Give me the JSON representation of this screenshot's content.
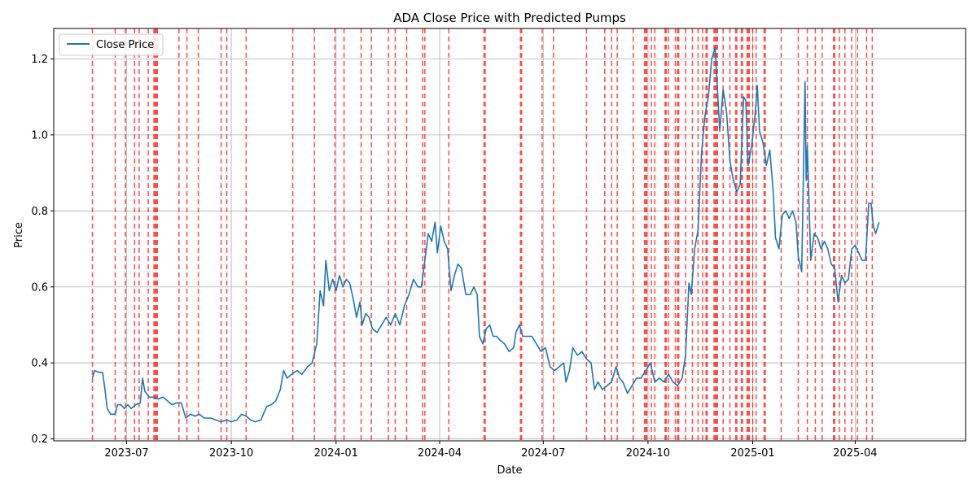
{
  "chart_data": {
    "type": "line",
    "title": "ADA Close Price with Predicted Pumps",
    "xlabel": "Date",
    "ylabel": "Price",
    "grid": true,
    "legend": {
      "position": "top-left",
      "entries": [
        "Close Price"
      ]
    },
    "ylim": [
      0.195,
      1.28
    ],
    "yticks": [
      0.2,
      0.4,
      0.6,
      0.8,
      1.0,
      1.2
    ],
    "ytick_labels": [
      "0.2",
      "0.4",
      "0.6",
      "0.8",
      "1.0",
      "1.2"
    ],
    "xlim_days": [
      0,
      500
    ],
    "xticks": [
      {
        "label": "2023-07",
        "day": 30
      },
      {
        "label": "2023-10",
        "day": 122
      },
      {
        "label": "2024-01",
        "day": 214
      },
      {
        "label": "2024-04",
        "day": 305
      },
      {
        "label": "2024-07",
        "day": 396
      },
      {
        "label": "2024-10",
        "day": 488
      },
      {
        "label": "2025-01",
        "day": 580
      },
      {
        "label": "2025-04",
        "day": 670
      }
    ],
    "x_start_day": -34,
    "x_end_day": 767,
    "series": [
      {
        "name": "Close Price",
        "color": "#1f77b4",
        "points": [
          [
            0,
            0.36
          ],
          [
            2,
            0.38
          ],
          [
            6,
            0.375
          ],
          [
            9,
            0.375
          ],
          [
            11,
            0.33
          ],
          [
            13,
            0.28
          ],
          [
            16,
            0.265
          ],
          [
            20,
            0.265
          ],
          [
            22,
            0.29
          ],
          [
            25,
            0.29
          ],
          [
            28,
            0.28
          ],
          [
            31,
            0.29
          ],
          [
            34,
            0.28
          ],
          [
            38,
            0.29
          ],
          [
            42,
            0.295
          ],
          [
            44,
            0.36
          ],
          [
            46,
            0.325
          ],
          [
            50,
            0.31
          ],
          [
            54,
            0.31
          ],
          [
            58,
            0.305
          ],
          [
            62,
            0.31
          ],
          [
            66,
            0.3
          ],
          [
            70,
            0.29
          ],
          [
            74,
            0.295
          ],
          [
            78,
            0.295
          ],
          [
            82,
            0.255
          ],
          [
            86,
            0.265
          ],
          [
            90,
            0.26
          ],
          [
            94,
            0.265
          ],
          [
            98,
            0.255
          ],
          [
            104,
            0.255
          ],
          [
            108,
            0.25
          ],
          [
            113,
            0.245
          ],
          [
            118,
            0.25
          ],
          [
            122,
            0.245
          ],
          [
            127,
            0.25
          ],
          [
            131,
            0.265
          ],
          [
            135,
            0.26
          ],
          [
            139,
            0.25
          ],
          [
            143,
            0.245
          ],
          [
            148,
            0.25
          ],
          [
            153,
            0.285
          ],
          [
            157,
            0.29
          ],
          [
            161,
            0.3
          ],
          [
            165,
            0.33
          ],
          [
            168,
            0.38
          ],
          [
            171,
            0.36
          ],
          [
            175,
            0.37
          ],
          [
            180,
            0.38
          ],
          [
            184,
            0.37
          ],
          [
            189,
            0.39
          ],
          [
            193,
            0.4
          ],
          [
            197,
            0.45
          ],
          [
            200,
            0.59
          ],
          [
            203,
            0.55
          ],
          [
            205,
            0.67
          ],
          [
            208,
            0.59
          ],
          [
            211,
            0.62
          ],
          [
            214,
            0.59
          ],
          [
            217,
            0.63
          ],
          [
            220,
            0.6
          ],
          [
            223,
            0.62
          ],
          [
            226,
            0.61
          ],
          [
            229,
            0.57
          ],
          [
            232,
            0.52
          ],
          [
            235,
            0.56
          ],
          [
            237,
            0.5
          ],
          [
            240,
            0.53
          ],
          [
            243,
            0.52
          ],
          [
            246,
            0.49
          ],
          [
            250,
            0.48
          ],
          [
            254,
            0.5
          ],
          [
            258,
            0.52
          ],
          [
            262,
            0.5
          ],
          [
            266,
            0.53
          ],
          [
            270,
            0.5
          ],
          [
            274,
            0.55
          ],
          [
            278,
            0.58
          ],
          [
            282,
            0.62
          ],
          [
            286,
            0.6
          ],
          [
            289,
            0.6
          ],
          [
            292,
            0.67
          ],
          [
            295,
            0.74
          ],
          [
            298,
            0.72
          ],
          [
            301,
            0.77
          ],
          [
            303,
            0.69
          ],
          [
            306,
            0.76
          ],
          [
            309,
            0.72
          ],
          [
            312,
            0.7
          ],
          [
            315,
            0.59
          ],
          [
            318,
            0.63
          ],
          [
            321,
            0.66
          ],
          [
            324,
            0.65
          ],
          [
            328,
            0.58
          ],
          [
            332,
            0.58
          ],
          [
            335,
            0.6
          ],
          [
            338,
            0.58
          ],
          [
            340,
            0.47
          ],
          [
            343,
            0.45
          ],
          [
            346,
            0.49
          ],
          [
            349,
            0.5
          ],
          [
            352,
            0.47
          ],
          [
            355,
            0.47
          ],
          [
            358,
            0.46
          ],
          [
            362,
            0.45
          ],
          [
            366,
            0.43
          ],
          [
            370,
            0.44
          ],
          [
            372,
            0.48
          ],
          [
            375,
            0.5
          ],
          [
            378,
            0.47
          ],
          [
            382,
            0.47
          ],
          [
            386,
            0.47
          ],
          [
            390,
            0.45
          ],
          [
            394,
            0.43
          ],
          [
            398,
            0.44
          ],
          [
            402,
            0.39
          ],
          [
            406,
            0.38
          ],
          [
            410,
            0.39
          ],
          [
            414,
            0.4
          ],
          [
            416,
            0.35
          ],
          [
            419,
            0.38
          ],
          [
            422,
            0.44
          ],
          [
            426,
            0.42
          ],
          [
            430,
            0.43
          ],
          [
            434,
            0.41
          ],
          [
            438,
            0.4
          ],
          [
            441,
            0.33
          ],
          [
            444,
            0.35
          ],
          [
            448,
            0.33
          ],
          [
            452,
            0.34
          ],
          [
            456,
            0.35
          ],
          [
            460,
            0.39
          ],
          [
            463,
            0.36
          ],
          [
            466,
            0.35
          ],
          [
            470,
            0.32
          ],
          [
            474,
            0.34
          ],
          [
            478,
            0.36
          ],
          [
            482,
            0.36
          ],
          [
            486,
            0.38
          ],
          [
            490,
            0.4
          ],
          [
            494,
            0.35
          ],
          [
            498,
            0.36
          ],
          [
            502,
            0.35
          ],
          [
            506,
            0.37
          ],
          [
            510,
            0.35
          ],
          [
            514,
            0.34
          ],
          [
            518,
            0.36
          ],
          [
            521,
            0.42
          ],
          [
            524,
            0.61
          ],
          [
            526,
            0.58
          ],
          [
            529,
            0.7
          ],
          [
            532,
            0.75
          ],
          [
            535,
            0.95
          ],
          [
            538,
            1.05
          ],
          [
            541,
            1.1
          ],
          [
            544,
            1.2
          ],
          [
            547,
            1.23
          ],
          [
            549,
            1.12
          ],
          [
            551,
            1.01
          ],
          [
            554,
            1.12
          ],
          [
            557,
            1.06
          ],
          [
            560,
            0.93
          ],
          [
            563,
            0.88
          ],
          [
            566,
            0.85
          ],
          [
            569,
            0.87
          ],
          [
            572,
            1.1
          ],
          [
            574,
            1.09
          ],
          [
            576,
            0.92
          ],
          [
            579,
            0.97
          ],
          [
            582,
            1.05
          ],
          [
            584,
            1.13
          ],
          [
            586,
            1.01
          ],
          [
            589,
            0.98
          ],
          [
            592,
            0.92
          ],
          [
            595,
            0.96
          ],
          [
            598,
            0.85
          ],
          [
            600,
            0.73
          ],
          [
            603,
            0.7
          ],
          [
            606,
            0.79
          ],
          [
            609,
            0.8
          ],
          [
            612,
            0.78
          ],
          [
            615,
            0.8
          ],
          [
            618,
            0.77
          ],
          [
            620,
            0.68
          ],
          [
            623,
            0.64
          ],
          [
            626,
            1.14
          ],
          [
            627,
            0.88
          ],
          [
            628,
            0.97
          ],
          [
            631,
            0.67
          ],
          [
            634,
            0.74
          ],
          [
            637,
            0.73
          ],
          [
            640,
            0.7
          ],
          [
            643,
            0.72
          ],
          [
            646,
            0.7
          ],
          [
            649,
            0.66
          ],
          [
            652,
            0.65
          ],
          [
            655,
            0.56
          ],
          [
            658,
            0.63
          ],
          [
            661,
            0.61
          ],
          [
            664,
            0.62
          ],
          [
            667,
            0.7
          ],
          [
            670,
            0.71
          ],
          [
            673,
            0.69
          ],
          [
            676,
            0.67
          ],
          [
            679,
            0.67
          ],
          [
            682,
            0.82
          ],
          [
            684,
            0.82
          ],
          [
            686,
            0.76
          ],
          [
            688,
            0.74
          ],
          [
            691,
            0.77
          ]
        ]
      }
    ],
    "predicted_pumps_x_days": [
      0,
      20,
      29,
      37,
      41,
      49,
      54,
      55,
      56,
      57,
      76,
      83,
      93,
      113,
      118,
      135,
      176,
      195,
      213,
      221,
      236,
      245,
      260,
      266,
      276,
      290,
      292,
      313,
      344,
      345,
      376,
      377,
      395,
      405,
      434,
      450,
      456,
      461,
      475,
      485,
      486,
      487,
      491,
      494,
      503,
      504,
      506,
      512,
      514,
      515,
      521,
      527,
      532,
      536,
      539,
      540,
      546,
      547,
      548,
      549,
      554,
      560,
      565,
      566,
      570,
      571,
      575,
      576,
      577,
      580,
      583,
      590,
      591,
      605,
      620,
      628,
      635,
      641,
      651,
      652,
      656,
      661,
      667,
      672,
      680,
      685
    ]
  }
}
